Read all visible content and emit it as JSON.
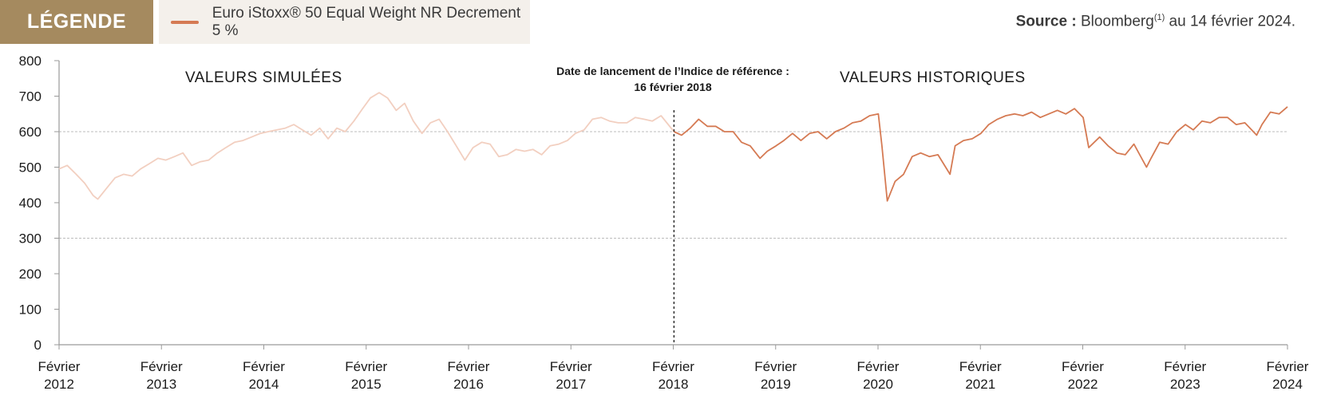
{
  "legend": {
    "tag": "LÉGENDE",
    "series_label": "Euro iStoxx® 50 Equal Weight NR Decrement 5 %",
    "series_color": "#d57a53"
  },
  "source": {
    "label": "Source :",
    "text": "Bloomberg",
    "sup": "(1)",
    "suffix": " au 14 février 2024."
  },
  "chart_data": {
    "type": "line",
    "ylim": [
      0,
      800
    ],
    "yticks": [
      0,
      100,
      200,
      300,
      400,
      500,
      600,
      700,
      800
    ],
    "y_tick_labels": [
      "0",
      "100",
      "200",
      "300",
      "400",
      "500",
      "600",
      "700",
      "800"
    ],
    "gridlines_y": [
      300,
      600
    ],
    "x_range": [
      "2012-02-14",
      "2024-02-14"
    ],
    "x_tick_labels": [
      [
        "Février",
        "2012"
      ],
      [
        "Février",
        "2013"
      ],
      [
        "Février",
        "2014"
      ],
      [
        "Février",
        "2015"
      ],
      [
        "Février",
        "2016"
      ],
      [
        "Février",
        "2017"
      ],
      [
        "Février",
        "2018"
      ],
      [
        "Février",
        "2019"
      ],
      [
        "Février",
        "2020"
      ],
      [
        "Février",
        "2021"
      ],
      [
        "Février",
        "2022"
      ],
      [
        "Février",
        "2023"
      ],
      [
        "Février",
        "2024"
      ]
    ],
    "annotations": {
      "simulated": "VALEURS SIMULÉES",
      "historical": "VALEURS HISTORIQUES",
      "launch_line1": "Date de lancement de l’Indice de référence :",
      "launch_line2": "16 février 2018"
    },
    "launch_date": "2018-02-16",
    "colors": {
      "simulated": "#f2cfc0",
      "historical": "#d57a53"
    },
    "series": [
      {
        "segment": "simulated",
        "points": [
          [
            "2012-02-14",
            495
          ],
          [
            "2012-03-14",
            505
          ],
          [
            "2012-04-15",
            480
          ],
          [
            "2012-05-15",
            455
          ],
          [
            "2012-06-15",
            420
          ],
          [
            "2012-07-01",
            410
          ],
          [
            "2012-08-01",
            440
          ],
          [
            "2012-09-01",
            470
          ],
          [
            "2012-10-01",
            480
          ],
          [
            "2012-11-01",
            475
          ],
          [
            "2012-12-01",
            495
          ],
          [
            "2013-01-01",
            510
          ],
          [
            "2013-02-01",
            525
          ],
          [
            "2013-03-01",
            520
          ],
          [
            "2013-04-01",
            530
          ],
          [
            "2013-05-01",
            540
          ],
          [
            "2013-06-01",
            505
          ],
          [
            "2013-07-01",
            515
          ],
          [
            "2013-08-01",
            520
          ],
          [
            "2013-09-01",
            540
          ],
          [
            "2013-10-01",
            555
          ],
          [
            "2013-11-01",
            570
          ],
          [
            "2013-12-01",
            575
          ],
          [
            "2014-01-01",
            585
          ],
          [
            "2014-02-01",
            595
          ],
          [
            "2014-03-01",
            600
          ],
          [
            "2014-04-01",
            605
          ],
          [
            "2014-05-01",
            610
          ],
          [
            "2014-06-01",
            620
          ],
          [
            "2014-07-01",
            605
          ],
          [
            "2014-08-01",
            590
          ],
          [
            "2014-09-01",
            610
          ],
          [
            "2014-10-01",
            580
          ],
          [
            "2014-11-01",
            610
          ],
          [
            "2014-12-01",
            600
          ],
          [
            "2015-01-01",
            630
          ],
          [
            "2015-02-01",
            665
          ],
          [
            "2015-03-01",
            695
          ],
          [
            "2015-04-01",
            710
          ],
          [
            "2015-05-01",
            695
          ],
          [
            "2015-06-01",
            660
          ],
          [
            "2015-07-01",
            680
          ],
          [
            "2015-08-01",
            630
          ],
          [
            "2015-09-01",
            595
          ],
          [
            "2015-10-01",
            625
          ],
          [
            "2015-11-01",
            635
          ],
          [
            "2015-12-01",
            600
          ],
          [
            "2016-01-01",
            560
          ],
          [
            "2016-02-01",
            520
          ],
          [
            "2016-03-01",
            555
          ],
          [
            "2016-04-01",
            570
          ],
          [
            "2016-05-01",
            565
          ],
          [
            "2016-06-01",
            530
          ],
          [
            "2016-07-01",
            535
          ],
          [
            "2016-08-01",
            550
          ],
          [
            "2016-09-01",
            545
          ],
          [
            "2016-10-01",
            550
          ],
          [
            "2016-11-01",
            535
          ],
          [
            "2016-12-01",
            560
          ],
          [
            "2017-01-01",
            565
          ],
          [
            "2017-02-01",
            575
          ],
          [
            "2017-03-01",
            595
          ],
          [
            "2017-04-01",
            605
          ],
          [
            "2017-05-01",
            635
          ],
          [
            "2017-06-01",
            640
          ],
          [
            "2017-07-01",
            630
          ],
          [
            "2017-08-01",
            625
          ],
          [
            "2017-09-01",
            625
          ],
          [
            "2017-10-01",
            640
          ],
          [
            "2017-11-01",
            635
          ],
          [
            "2017-12-01",
            630
          ],
          [
            "2018-01-01",
            645
          ],
          [
            "2018-02-16",
            600
          ]
        ]
      },
      {
        "segment": "historical",
        "points": [
          [
            "2018-02-16",
            600
          ],
          [
            "2018-03-15",
            590
          ],
          [
            "2018-04-15",
            610
          ],
          [
            "2018-05-15",
            635
          ],
          [
            "2018-06-15",
            615
          ],
          [
            "2018-07-15",
            615
          ],
          [
            "2018-08-15",
            600
          ],
          [
            "2018-09-15",
            600
          ],
          [
            "2018-10-15",
            570
          ],
          [
            "2018-11-15",
            560
          ],
          [
            "2018-12-20",
            525
          ],
          [
            "2019-01-15",
            545
          ],
          [
            "2019-02-15",
            560
          ],
          [
            "2019-03-15",
            575
          ],
          [
            "2019-04-15",
            595
          ],
          [
            "2019-05-15",
            575
          ],
          [
            "2019-06-15",
            595
          ],
          [
            "2019-07-15",
            600
          ],
          [
            "2019-08-15",
            580
          ],
          [
            "2019-09-15",
            600
          ],
          [
            "2019-10-15",
            610
          ],
          [
            "2019-11-15",
            625
          ],
          [
            "2019-12-15",
            630
          ],
          [
            "2020-01-15",
            645
          ],
          [
            "2020-02-15",
            650
          ],
          [
            "2020-02-28",
            560
          ],
          [
            "2020-03-18",
            405
          ],
          [
            "2020-04-15",
            460
          ],
          [
            "2020-05-15",
            480
          ],
          [
            "2020-06-15",
            530
          ],
          [
            "2020-07-15",
            540
          ],
          [
            "2020-08-15",
            530
          ],
          [
            "2020-09-15",
            535
          ],
          [
            "2020-10-28",
            480
          ],
          [
            "2020-11-15",
            560
          ],
          [
            "2020-12-15",
            575
          ],
          [
            "2021-01-15",
            580
          ],
          [
            "2021-02-15",
            595
          ],
          [
            "2021-03-15",
            620
          ],
          [
            "2021-04-15",
            635
          ],
          [
            "2021-05-15",
            645
          ],
          [
            "2021-06-15",
            650
          ],
          [
            "2021-07-15",
            645
          ],
          [
            "2021-08-15",
            655
          ],
          [
            "2021-09-15",
            640
          ],
          [
            "2021-10-15",
            650
          ],
          [
            "2021-11-15",
            660
          ],
          [
            "2021-12-15",
            650
          ],
          [
            "2022-01-15",
            665
          ],
          [
            "2022-02-15",
            640
          ],
          [
            "2022-03-07",
            555
          ],
          [
            "2022-04-15",
            585
          ],
          [
            "2022-05-15",
            560
          ],
          [
            "2022-06-15",
            540
          ],
          [
            "2022-07-15",
            535
          ],
          [
            "2022-08-15",
            565
          ],
          [
            "2022-09-29",
            500
          ],
          [
            "2022-10-15",
            525
          ],
          [
            "2022-11-15",
            570
          ],
          [
            "2022-12-15",
            565
          ],
          [
            "2023-01-15",
            600
          ],
          [
            "2023-02-15",
            620
          ],
          [
            "2023-03-15",
            605
          ],
          [
            "2023-04-15",
            630
          ],
          [
            "2023-05-15",
            625
          ],
          [
            "2023-06-15",
            640
          ],
          [
            "2023-07-15",
            640
          ],
          [
            "2023-08-15",
            620
          ],
          [
            "2023-09-15",
            625
          ],
          [
            "2023-10-27",
            590
          ],
          [
            "2023-11-15",
            620
          ],
          [
            "2023-12-15",
            655
          ],
          [
            "2024-01-15",
            650
          ],
          [
            "2024-02-14",
            670
          ]
        ]
      }
    ]
  }
}
